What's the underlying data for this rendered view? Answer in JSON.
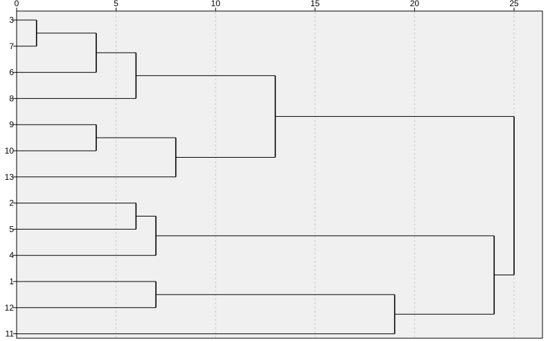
{
  "chart_data": {
    "type": "dendrogram",
    "orientation": "horizontal",
    "x_ticks": [
      0,
      5,
      10,
      15,
      20,
      25
    ],
    "xlim": [
      0,
      26.3
    ],
    "grid": "vertical dotted",
    "leaf_order": [
      "3",
      "7",
      "6",
      "8",
      "9",
      "10",
      "13",
      "2",
      "5",
      "4",
      "1",
      "12",
      "11"
    ],
    "merges": [
      {
        "left": "3",
        "right": "7",
        "height": 1
      },
      {
        "left": "3+7",
        "right": "6",
        "height": 4
      },
      {
        "left": "3+7+6",
        "right": "8",
        "height": 6
      },
      {
        "left": "9",
        "right": "10",
        "height": 4
      },
      {
        "left": "9+10",
        "right": "13",
        "height": 8
      },
      {
        "left": "3+7+6+8",
        "right": "9+10+13",
        "height": 13
      },
      {
        "left": "2",
        "right": "5",
        "height": 6
      },
      {
        "left": "2+5",
        "right": "4",
        "height": 7
      },
      {
        "left": "1",
        "right": "12",
        "height": 7
      },
      {
        "left": "1+12",
        "right": "11",
        "height": 19
      },
      {
        "left": "2+5+4",
        "right": "1+12+11",
        "height": 24
      },
      {
        "left": "3+7+6+8+9+10+13",
        "right": "2+5+4+1+12+11",
        "height": 25
      }
    ]
  }
}
